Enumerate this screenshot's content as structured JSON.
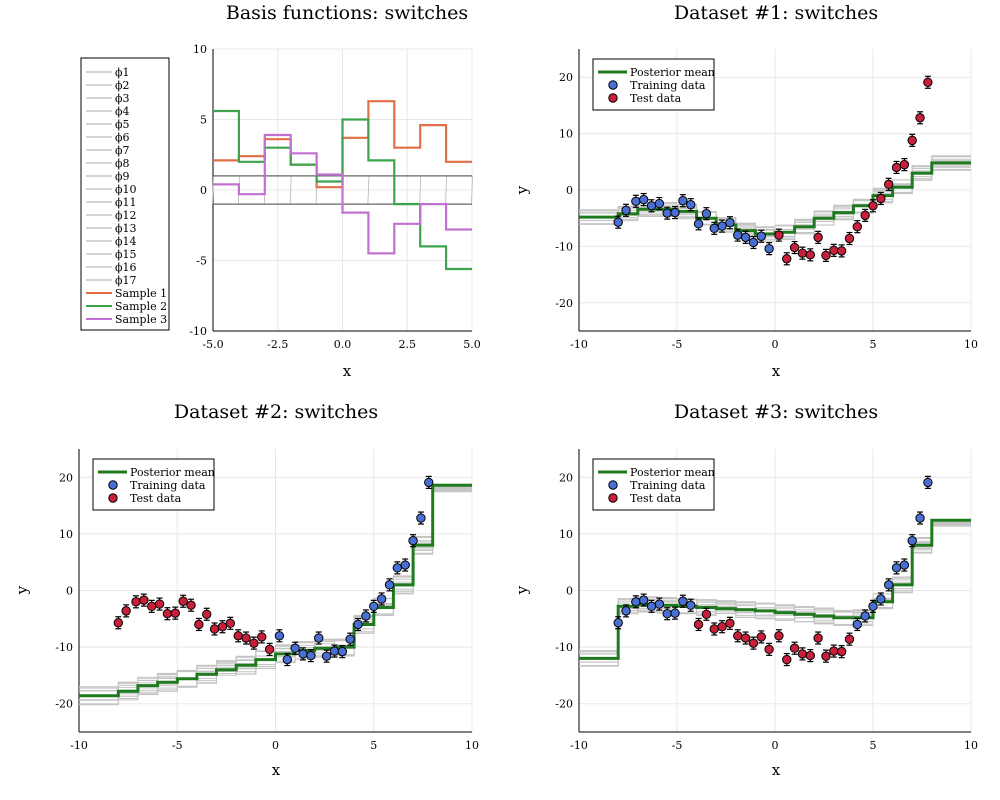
{
  "chart_data": [
    {
      "type": "line",
      "title": "Basis functions: switches",
      "xlabel": "x",
      "ylabel": "",
      "xlim": [
        -5,
        5
      ],
      "ylim": [
        -10,
        10
      ],
      "xticks": [
        "-5.0",
        "-2.5",
        "0.0",
        "2.5",
        "5.0"
      ],
      "yticks": [
        "-10",
        "-5",
        "0",
        "5",
        "10"
      ],
      "grid": true,
      "legend_position": "outer-left",
      "basis_labels": [
        "ϕ1",
        "ϕ2",
        "ϕ3",
        "ϕ4",
        "ϕ5",
        "ϕ6",
        "ϕ7",
        "ϕ8",
        "ϕ9",
        "ϕ10",
        "ϕ11",
        "ϕ12",
        "ϕ13",
        "ϕ14",
        "ϕ15",
        "ϕ16",
        "ϕ17"
      ],
      "series": [
        {
          "name": "Sample 1",
          "color": "#e26f46",
          "breaks": [
            -5,
            -4,
            -3,
            -2,
            -1,
            0,
            1,
            2,
            3,
            4,
            5
          ],
          "values": [
            2.1,
            2.4,
            3.6,
            1.8,
            0.2,
            3.7,
            6.3,
            3.0,
            4.6,
            2.0
          ]
        },
        {
          "name": "Sample 2",
          "color": "#3da44d",
          "breaks": [
            -5,
            -4,
            -3,
            -2,
            -1,
            0,
            1,
            2,
            3,
            4,
            5
          ],
          "values": [
            5.6,
            2.0,
            3.0,
            1.8,
            0.6,
            5.0,
            2.1,
            -1.0,
            -4.0,
            -5.6
          ]
        },
        {
          "name": "Sample 3",
          "color": "#c271d2",
          "breaks": [
            -5,
            -4,
            -3,
            -2,
            -1,
            0,
            1,
            2,
            3,
            4,
            5
          ],
          "values": [
            0.4,
            -0.3,
            3.9,
            2.6,
            1.1,
            -1.6,
            -4.5,
            -2.4,
            -1.0,
            -2.8
          ]
        }
      ]
    },
    {
      "type": "scatter",
      "title": "Dataset #1: switches",
      "xlabel": "x",
      "ylabel": "y",
      "xlim": [
        -10,
        10
      ],
      "ylim": [
        -25,
        25
      ],
      "xticks": [
        "-10",
        "-5",
        "0",
        "5",
        "10"
      ],
      "yticks": [
        "-20",
        "-10",
        "0",
        "10",
        "20"
      ],
      "grid": true,
      "legend_position": "top-left",
      "legend": [
        "Posterior mean",
        "Training data",
        "Test data"
      ],
      "posterior_mean": {
        "color": "#1f7a1f",
        "breaks": [
          -10,
          -8,
          -7,
          -5,
          -4,
          -3,
          -2,
          -1,
          0,
          1,
          2,
          3,
          4,
          5,
          6,
          7,
          8,
          10
        ],
        "values": [
          -4.8,
          -4.2,
          -3.4,
          -3.8,
          -5.0,
          -6.2,
          -7.2,
          -7.8,
          -7.5,
          -6.5,
          -5.0,
          -4.0,
          -2.8,
          -1.0,
          0.5,
          3.0,
          4.8
        ]
      },
      "training": {
        "color": "#4a6fd3",
        "x": [
          -8,
          -7.6,
          -7.1,
          -6.7,
          -6.3,
          -5.9,
          -5.5,
          -5.1,
          -4.7,
          -4.3,
          -3.9,
          -3.5,
          -3.1,
          -2.7,
          -2.3,
          -1.9,
          -1.5,
          -1.1,
          -0.7,
          -0.3
        ],
        "y": [
          -5.7,
          -3.6,
          -2.0,
          -1.7,
          -2.8,
          -2.4,
          -4.1,
          -4.0,
          -1.9,
          -2.6,
          -6.0,
          -4.2,
          -6.8,
          -6.4,
          -5.8,
          -8.0,
          -8.4,
          -9.3,
          -8.2,
          -10.4
        ]
      },
      "test": {
        "color": "#c8203a",
        "x": [
          0.2,
          0.6,
          1.0,
          1.4,
          1.8,
          2.2,
          2.6,
          3.0,
          3.4,
          3.8,
          4.2,
          4.6,
          5.0,
          5.4,
          5.8,
          6.2,
          6.6,
          7.0,
          7.4,
          7.8
        ],
        "y": [
          -8.0,
          -12.2,
          -10.2,
          -11.2,
          -11.5,
          -8.4,
          -11.6,
          -10.7,
          -10.8,
          -8.6,
          -6.5,
          -4.5,
          -2.8,
          -1.5,
          1.0,
          4.0,
          4.5,
          8.8,
          12.8,
          19.1
        ]
      }
    },
    {
      "type": "scatter",
      "title": "Dataset #2: switches",
      "xlabel": "x",
      "ylabel": "y",
      "xlim": [
        -10,
        10
      ],
      "ylim": [
        -25,
        25
      ],
      "xticks": [
        "-10",
        "-5",
        "0",
        "5",
        "10"
      ],
      "yticks": [
        "-20",
        "-10",
        "0",
        "10",
        "20"
      ],
      "grid": true,
      "legend_position": "top-left",
      "legend": [
        "Posterior mean",
        "Training data",
        "Test data"
      ],
      "posterior_mean": {
        "color": "#1f7a1f",
        "breaks": [
          -10,
          -8,
          -7,
          -6,
          -5,
          -4,
          -3,
          -2,
          -1,
          0,
          1,
          2,
          3,
          4,
          5,
          6,
          7,
          8,
          10
        ],
        "values": [
          -18.6,
          -17.8,
          -16.8,
          -16.2,
          -15.6,
          -14.8,
          -14.0,
          -13.2,
          -12.2,
          -11.2,
          -10.6,
          -10.2,
          -10.0,
          -6.0,
          -3.0,
          1.0,
          8.0,
          18.6
        ]
      },
      "training": {
        "color": "#4a6fd3",
        "x": [
          0.2,
          0.6,
          1.0,
          1.4,
          1.8,
          2.2,
          2.6,
          3.0,
          3.4,
          3.8,
          4.2,
          4.6,
          5.0,
          5.4,
          5.8,
          6.2,
          6.6,
          7.0,
          7.4,
          7.8
        ],
        "y": [
          -8.0,
          -12.2,
          -10.2,
          -11.2,
          -11.5,
          -8.4,
          -11.6,
          -10.7,
          -10.8,
          -8.6,
          -6.0,
          -4.5,
          -2.8,
          -1.5,
          1.0,
          4.0,
          4.5,
          8.8,
          12.8,
          19.1
        ]
      },
      "test": {
        "color": "#c8203a",
        "x": [
          -8,
          -7.6,
          -7.1,
          -6.7,
          -6.3,
          -5.9,
          -5.5,
          -5.1,
          -4.7,
          -4.3,
          -3.9,
          -3.5,
          -3.1,
          -2.7,
          -2.3,
          -1.9,
          -1.5,
          -1.1,
          -0.7,
          -0.3
        ],
        "y": [
          -5.7,
          -3.6,
          -2.0,
          -1.7,
          -2.8,
          -2.4,
          -4.1,
          -4.0,
          -1.9,
          -2.6,
          -6.0,
          -4.2,
          -6.8,
          -6.4,
          -5.8,
          -8.0,
          -8.4,
          -9.3,
          -8.2,
          -10.4
        ]
      }
    },
    {
      "type": "scatter",
      "title": "Dataset #3: switches",
      "xlabel": "x",
      "ylabel": "y",
      "xlim": [
        -10,
        10
      ],
      "ylim": [
        -25,
        25
      ],
      "xticks": [
        "-10",
        "-5",
        "0",
        "5",
        "10"
      ],
      "yticks": [
        "-20",
        "-10",
        "0",
        "10",
        "20"
      ],
      "grid": true,
      "legend_position": "top-left",
      "legend": [
        "Posterior mean",
        "Training data",
        "Test data"
      ],
      "posterior_mean": {
        "color": "#1f7a1f",
        "breaks": [
          -10,
          -8,
          -7,
          -6,
          -5,
          -4,
          -3,
          -2,
          -1,
          0,
          1,
          2,
          3,
          4,
          5,
          6,
          7,
          8,
          10
        ],
        "values": [
          -12.0,
          -2.8,
          -2.4,
          -2.6,
          -2.8,
          -3.0,
          -3.2,
          -3.4,
          -3.6,
          -3.9,
          -4.2,
          -4.5,
          -4.8,
          -4.8,
          -2.0,
          1.0,
          8.0,
          12.4
        ]
      },
      "training": {
        "color": "#4a6fd3",
        "x": [
          -8,
          -7.6,
          -7.1,
          -6.7,
          -6.3,
          -5.9,
          -5.5,
          -5.1,
          -4.7,
          -4.3,
          4.2,
          4.6,
          5.0,
          5.4,
          5.8,
          6.2,
          6.6,
          7.0,
          7.4,
          7.8
        ],
        "y": [
          -5.7,
          -3.6,
          -2.0,
          -1.7,
          -2.8,
          -2.4,
          -4.1,
          -4.0,
          -1.9,
          -2.6,
          -6.0,
          -4.5,
          -2.8,
          -1.5,
          1.0,
          4.0,
          4.5,
          8.8,
          12.8,
          19.1
        ]
      },
      "test": {
        "color": "#c8203a",
        "x": [
          -3.9,
          -3.5,
          -3.1,
          -2.7,
          -2.3,
          -1.9,
          -1.5,
          -1.1,
          -0.7,
          -0.3,
          0.2,
          0.6,
          1.0,
          1.4,
          1.8,
          2.2,
          2.6,
          3.0,
          3.4,
          3.8
        ],
        "y": [
          -6.0,
          -4.2,
          -6.8,
          -6.4,
          -5.8,
          -8.0,
          -8.4,
          -9.3,
          -8.2,
          -10.4,
          -8.0,
          -12.2,
          -10.2,
          -11.2,
          -11.5,
          -8.4,
          -11.6,
          -10.7,
          -10.8,
          -8.6
        ]
      }
    }
  ]
}
